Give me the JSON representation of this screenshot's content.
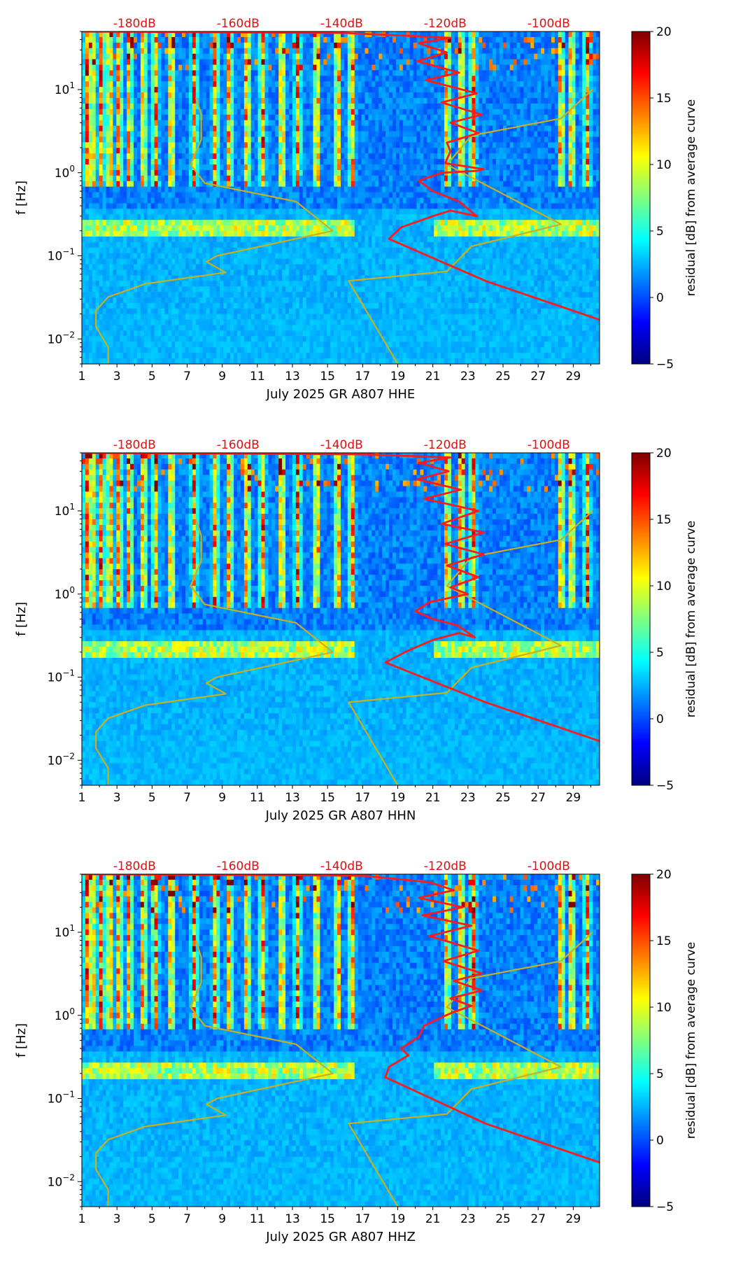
{
  "colors": {
    "db_scale_text": "#e01010",
    "red_curve": "#ff1a1a",
    "yellow_curve": "#c8b020",
    "colormap": [
      "#00007f",
      "#0000ff",
      "#007fff",
      "#00ffff",
      "#7fff7f",
      "#ffff00",
      "#ff7f00",
      "#ff0000",
      "#7f0000"
    ]
  },
  "chart_data": [
    {
      "type": "heatmap",
      "title": "",
      "xlabel": "July 2025 GR A807  HHE",
      "ylabel": "f [Hz]",
      "xlim": [
        1,
        30.5
      ],
      "ylim": [
        0.005,
        50
      ],
      "x_ticks": [
        1,
        3,
        5,
        7,
        9,
        11,
        13,
        15,
        17,
        19,
        21,
        23,
        25,
        27,
        29
      ],
      "x_tick_labels": [
        "1",
        "3",
        "5",
        "7",
        "9",
        "11",
        "13",
        "15",
        "17",
        "19",
        "21",
        "23",
        "25",
        "27",
        "29"
      ],
      "y_ticks": [
        0.01,
        0.1,
        1,
        10
      ],
      "y_tick_labels": [
        {
          "base": "10",
          "exp": "−2"
        },
        {
          "base": "10",
          "exp": "−1"
        },
        {
          "base": "10",
          "exp": "0"
        },
        {
          "base": "10",
          "exp": "1"
        }
      ],
      "db_scale": {
        "labels": [
          "-180dB",
          "-160dB",
          "-140dB",
          "-120dB",
          "-100dB"
        ],
        "positions": [
          4,
          9.9,
          15.8,
          21.7,
          27.6
        ],
        "range_db": [
          -190,
          -90
        ]
      },
      "colorbar": {
        "label": "residual [dB] from average curve",
        "min": -5,
        "max": 20,
        "ticks": [
          -5,
          0,
          5,
          10,
          15,
          20
        ],
        "tick_labels": [
          "−5",
          "0",
          "5",
          "10",
          "15",
          "20"
        ]
      },
      "series": [
        {
          "name": "yellow reference curve",
          "color": "#c8b020",
          "points": [
            [
              2.5,
              0.005
            ],
            [
              2.5,
              0.008
            ],
            [
              1.8,
              0.014
            ],
            [
              1.8,
              0.022
            ],
            [
              2.5,
              0.032
            ],
            [
              4.6,
              0.046
            ],
            [
              9.2,
              0.063
            ],
            [
              8.1,
              0.085
            ],
            [
              8.7,
              0.1
            ],
            [
              15.3,
              0.2
            ],
            [
              13.2,
              0.45
            ],
            [
              8,
              0.75
            ],
            [
              7.2,
              1.25
            ],
            [
              7.8,
              2.5
            ],
            [
              7.8,
              5
            ],
            [
              7.5,
              8
            ]
          ]
        },
        {
          "name": "yellow reference curve (high)",
          "color": "#c8b020",
          "points": [
            [
              19,
              0.005
            ],
            [
              16.2,
              0.05
            ],
            [
              21.8,
              0.065
            ],
            [
              23.2,
              0.13
            ],
            [
              28.3,
              0.24
            ],
            [
              21.8,
              1.25
            ],
            [
              23.2,
              2.8
            ],
            [
              28.3,
              4.5
            ],
            [
              30.1,
              10
            ]
          ]
        },
        {
          "name": "red average curve",
          "color": "#ff1a1a",
          "points": [
            [
              30.5,
              0.017
            ],
            [
              24,
              0.05
            ],
            [
              18.5,
              0.16
            ],
            [
              19.2,
              0.22
            ],
            [
              21,
              0.3
            ],
            [
              22,
              0.35
            ],
            [
              23.5,
              0.3
            ],
            [
              22.5,
              0.45
            ],
            [
              21,
              0.6
            ],
            [
              20.2,
              0.8
            ],
            [
              21.5,
              1
            ],
            [
              23.5,
              1.05
            ],
            [
              23.9,
              1.1
            ],
            [
              21.7,
              1.3
            ],
            [
              22,
              1.8
            ],
            [
              21.8,
              2.3
            ],
            [
              23.6,
              3
            ],
            [
              22,
              4
            ],
            [
              23.8,
              5
            ],
            [
              21.5,
              7
            ],
            [
              23.5,
              9
            ],
            [
              20.6,
              13
            ],
            [
              22.5,
              16
            ],
            [
              20.1,
              22
            ],
            [
              21.8,
              28
            ],
            [
              20.2,
              36
            ],
            [
              22,
              42
            ],
            [
              16,
              48
            ],
            [
              1,
              50
            ]
          ]
        }
      ]
    },
    {
      "type": "heatmap",
      "title": "",
      "xlabel": "July 2025 GR A807  HHN",
      "ylabel": "f [Hz]",
      "xlim": [
        1,
        30.5
      ],
      "ylim": [
        0.005,
        50
      ],
      "x_ticks": [
        1,
        3,
        5,
        7,
        9,
        11,
        13,
        15,
        17,
        19,
        21,
        23,
        25,
        27,
        29
      ],
      "x_tick_labels": [
        "1",
        "3",
        "5",
        "7",
        "9",
        "11",
        "13",
        "15",
        "17",
        "19",
        "21",
        "23",
        "25",
        "27",
        "29"
      ],
      "y_ticks": [
        0.01,
        0.1,
        1,
        10
      ],
      "y_tick_labels": [
        {
          "base": "10",
          "exp": "−2"
        },
        {
          "base": "10",
          "exp": "−1"
        },
        {
          "base": "10",
          "exp": "0"
        },
        {
          "base": "10",
          "exp": "1"
        }
      ],
      "db_scale": {
        "labels": [
          "-180dB",
          "-160dB",
          "-140dB",
          "-120dB",
          "-100dB"
        ],
        "positions": [
          4,
          9.9,
          15.8,
          21.7,
          27.6
        ],
        "range_db": [
          -190,
          -90
        ]
      },
      "colorbar": {
        "label": "residual [dB] from average curve",
        "min": -5,
        "max": 20,
        "ticks": [
          -5,
          0,
          5,
          10,
          15,
          20
        ],
        "tick_labels": [
          "−5",
          "0",
          "5",
          "10",
          "15",
          "20"
        ]
      },
      "series": [
        {
          "name": "yellow reference curve",
          "color": "#c8b020",
          "points": [
            [
              2.5,
              0.005
            ],
            [
              2.5,
              0.008
            ],
            [
              1.8,
              0.014
            ],
            [
              1.8,
              0.022
            ],
            [
              2.5,
              0.032
            ],
            [
              4.6,
              0.046
            ],
            [
              9.2,
              0.063
            ],
            [
              8.1,
              0.085
            ],
            [
              8.7,
              0.1
            ],
            [
              15.3,
              0.2
            ],
            [
              13.2,
              0.45
            ],
            [
              8,
              0.75
            ],
            [
              7.2,
              1.25
            ],
            [
              7.8,
              2.5
            ],
            [
              7.8,
              5
            ],
            [
              7.5,
              8
            ]
          ]
        },
        {
          "name": "yellow reference curve (high)",
          "color": "#c8b020",
          "points": [
            [
              19,
              0.005
            ],
            [
              16.2,
              0.05
            ],
            [
              21.8,
              0.065
            ],
            [
              23.2,
              0.13
            ],
            [
              28.3,
              0.24
            ],
            [
              21.8,
              1.25
            ],
            [
              23.2,
              2.8
            ],
            [
              28.3,
              4.5
            ],
            [
              30.1,
              10
            ]
          ]
        },
        {
          "name": "red average curve",
          "color": "#ff1a1a",
          "points": [
            [
              30.5,
              0.017
            ],
            [
              24,
              0.05
            ],
            [
              18.3,
              0.15
            ],
            [
              19.4,
              0.2
            ],
            [
              21,
              0.28
            ],
            [
              22.5,
              0.34
            ],
            [
              23.4,
              0.3
            ],
            [
              22.4,
              0.42
            ],
            [
              21,
              0.5
            ],
            [
              20,
              0.62
            ],
            [
              20.8,
              0.8
            ],
            [
              23,
              1.0
            ],
            [
              22,
              1.2
            ],
            [
              23.6,
              1.6
            ],
            [
              21.8,
              2.2
            ],
            [
              23.9,
              3
            ],
            [
              21.7,
              4
            ],
            [
              23.9,
              5.5
            ],
            [
              21.5,
              7
            ],
            [
              23.6,
              10
            ],
            [
              20.5,
              14
            ],
            [
              22.6,
              18
            ],
            [
              20.1,
              24
            ],
            [
              21.9,
              30
            ],
            [
              20.2,
              38
            ],
            [
              22,
              44
            ],
            [
              17,
              48
            ],
            [
              1,
              50
            ]
          ]
        }
      ]
    },
    {
      "type": "heatmap",
      "title": "",
      "xlabel": "July 2025 GR A807  HHZ",
      "ylabel": "f [Hz]",
      "xlim": [
        1,
        30.5
      ],
      "ylim": [
        0.005,
        50
      ],
      "x_ticks": [
        1,
        3,
        5,
        7,
        9,
        11,
        13,
        15,
        17,
        19,
        21,
        23,
        25,
        27,
        29
      ],
      "x_tick_labels": [
        "1",
        "3",
        "5",
        "7",
        "9",
        "11",
        "13",
        "15",
        "17",
        "19",
        "21",
        "23",
        "25",
        "27",
        "29"
      ],
      "y_ticks": [
        0.01,
        0.1,
        1,
        10
      ],
      "y_tick_labels": [
        {
          "base": "10",
          "exp": "−2"
        },
        {
          "base": "10",
          "exp": "−1"
        },
        {
          "base": "10",
          "exp": "0"
        },
        {
          "base": "10",
          "exp": "1"
        }
      ],
      "db_scale": {
        "labels": [
          "-180dB",
          "-160dB",
          "-140dB",
          "-120dB",
          "-100dB"
        ],
        "positions": [
          4,
          9.9,
          15.8,
          21.7,
          27.6
        ],
        "range_db": [
          -190,
          -90
        ]
      },
      "colorbar": {
        "label": "residual [dB] from average curve",
        "min": -5,
        "max": 20,
        "ticks": [
          -5,
          0,
          5,
          10,
          15,
          20
        ],
        "tick_labels": [
          "−5",
          "0",
          "5",
          "10",
          "15",
          "20"
        ]
      },
      "series": [
        {
          "name": "yellow reference curve",
          "color": "#c8b020",
          "points": [
            [
              2.5,
              0.005
            ],
            [
              2.5,
              0.008
            ],
            [
              1.8,
              0.014
            ],
            [
              1.8,
              0.022
            ],
            [
              2.5,
              0.032
            ],
            [
              4.6,
              0.046
            ],
            [
              9.2,
              0.063
            ],
            [
              8.1,
              0.085
            ],
            [
              8.7,
              0.1
            ],
            [
              15.3,
              0.2
            ],
            [
              13.2,
              0.45
            ],
            [
              8,
              0.75
            ],
            [
              7.2,
              1.25
            ],
            [
              7.8,
              2.5
            ],
            [
              7.8,
              5
            ],
            [
              7.5,
              8
            ]
          ]
        },
        {
          "name": "yellow reference curve (high)",
          "color": "#c8b020",
          "points": [
            [
              19,
              0.005
            ],
            [
              16.2,
              0.05
            ],
            [
              21.8,
              0.065
            ],
            [
              23.2,
              0.13
            ],
            [
              28.3,
              0.24
            ],
            [
              21.8,
              1.25
            ],
            [
              23.2,
              2.8
            ],
            [
              28.3,
              4.5
            ],
            [
              30.1,
              10
            ]
          ]
        },
        {
          "name": "red average curve",
          "color": "#ff1a1a",
          "points": [
            [
              30.5,
              0.017
            ],
            [
              24,
              0.05
            ],
            [
              18.3,
              0.18
            ],
            [
              18.5,
              0.24
            ],
            [
              19.6,
              0.33
            ],
            [
              19.2,
              0.4
            ],
            [
              20.2,
              0.55
            ],
            [
              20.5,
              0.75
            ],
            [
              21.5,
              0.95
            ],
            [
              22.2,
              1.1
            ],
            [
              23.2,
              1.3
            ],
            [
              22,
              1.6
            ],
            [
              23.8,
              2
            ],
            [
              22.2,
              2.6
            ],
            [
              23.8,
              3.2
            ],
            [
              21.6,
              4.5
            ],
            [
              23.6,
              6
            ],
            [
              20.8,
              9
            ],
            [
              23.2,
              12
            ],
            [
              20.4,
              16
            ],
            [
              22.7,
              20
            ],
            [
              20.2,
              26
            ],
            [
              22.2,
              32
            ],
            [
              20.8,
              40
            ],
            [
              17,
              48
            ],
            [
              1,
              50
            ]
          ]
        }
      ]
    }
  ]
}
